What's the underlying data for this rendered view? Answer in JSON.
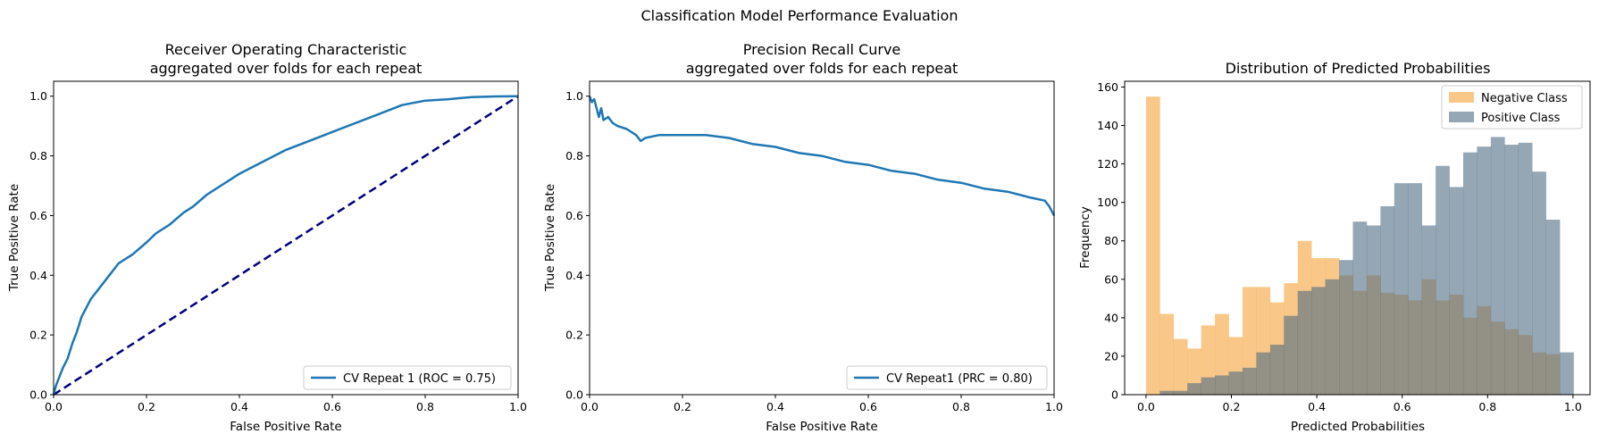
{
  "figure": {
    "suptitle": "Classification Model Performance Evaluation"
  },
  "colors": {
    "roc": "#1f77b4",
    "diagonal": "#000080",
    "negative": "#f5a33a",
    "positive": "#4e6a82"
  },
  "chart_data": [
    {
      "id": "roc",
      "type": "line",
      "title_line1": "Receiver Operating Characteristic",
      "title_line2": "aggregated over folds for each repeat",
      "xlabel": "False Positive Rate",
      "ylabel": "True Positive Rate",
      "xlim": [
        0,
        1
      ],
      "ylim": [
        0,
        1.05
      ],
      "xticks": [
        "0.0",
        "0.2",
        "0.4",
        "0.6",
        "0.8",
        "1.0"
      ],
      "yticks": [
        "0.0",
        "0.2",
        "0.4",
        "0.6",
        "0.8",
        "1.0"
      ],
      "legend_position": "lower-right",
      "grid": false,
      "series": [
        {
          "name": "CV Repeat 1 (ROC = 0.75)",
          "x": [
            0,
            0.005,
            0.01,
            0.02,
            0.03,
            0.04,
            0.05,
            0.06,
            0.07,
            0.08,
            0.1,
            0.12,
            0.14,
            0.15,
            0.17,
            0.2,
            0.22,
            0.25,
            0.28,
            0.3,
            0.33,
            0.35,
            0.4,
            0.45,
            0.5,
            0.55,
            0.6,
            0.65,
            0.7,
            0.75,
            0.8,
            0.85,
            0.9,
            0.95,
            1.0
          ],
          "y": [
            0,
            0.03,
            0.05,
            0.09,
            0.12,
            0.17,
            0.21,
            0.26,
            0.29,
            0.32,
            0.36,
            0.4,
            0.44,
            0.45,
            0.47,
            0.51,
            0.54,
            0.57,
            0.61,
            0.63,
            0.67,
            0.69,
            0.74,
            0.78,
            0.82,
            0.85,
            0.88,
            0.91,
            0.94,
            0.97,
            0.985,
            0.99,
            0.997,
            0.999,
            1.0
          ]
        },
        {
          "x": [
            0,
            1
          ],
          "y": [
            0,
            1
          ]
        }
      ]
    },
    {
      "id": "prc",
      "type": "line",
      "title_line1": "Precision Recall Curve",
      "title_line2": "aggregated over folds for each repeat",
      "xlabel": "False Positive Rate",
      "ylabel": "True Positive Rate",
      "xlim": [
        0,
        1
      ],
      "ylim": [
        0,
        1.05
      ],
      "xticks": [
        "0.0",
        "0.2",
        "0.4",
        "0.6",
        "0.8",
        "1.0"
      ],
      "yticks": [
        "0.0",
        "0.2",
        "0.4",
        "0.6",
        "0.8",
        "1.0"
      ],
      "legend_position": "lower-right",
      "grid": false,
      "series": [
        {
          "name": "CV Repeat1 (PRC = 0.80)",
          "x": [
            0,
            0.005,
            0.01,
            0.015,
            0.02,
            0.025,
            0.03,
            0.04,
            0.05,
            0.06,
            0.08,
            0.1,
            0.11,
            0.12,
            0.15,
            0.2,
            0.25,
            0.3,
            0.35,
            0.4,
            0.45,
            0.5,
            0.55,
            0.6,
            0.65,
            0.7,
            0.75,
            0.8,
            0.85,
            0.9,
            0.95,
            0.98,
            0.99,
            1.0
          ],
          "y": [
            1.0,
            0.98,
            0.99,
            0.96,
            0.93,
            0.96,
            0.92,
            0.93,
            0.91,
            0.9,
            0.89,
            0.87,
            0.85,
            0.86,
            0.87,
            0.87,
            0.87,
            0.86,
            0.84,
            0.83,
            0.81,
            0.8,
            0.78,
            0.77,
            0.75,
            0.74,
            0.72,
            0.71,
            0.69,
            0.68,
            0.66,
            0.65,
            0.63,
            0.6
          ]
        }
      ]
    },
    {
      "id": "hist",
      "type": "bar",
      "title": "Distribution of Predicted Probabilities",
      "xlabel": "Predicted Probabilities",
      "ylabel": "Frequency",
      "xlim": [
        -0.05,
        1.04
      ],
      "ylim": [
        0,
        163
      ],
      "xticks": [
        {
          "value": 0.0,
          "label": "0.0"
        },
        {
          "value": 0.2,
          "label": "0.2"
        },
        {
          "value": 0.4,
          "label": "0.4"
        },
        {
          "value": 0.6,
          "label": "0.6"
        },
        {
          "value": 0.8,
          "label": "0.8"
        },
        {
          "value": 1.0,
          "label": "1.0"
        }
      ],
      "yticks": [
        {
          "value": 0,
          "label": "0"
        },
        {
          "value": 20,
          "label": "20"
        },
        {
          "value": 40,
          "label": "40"
        },
        {
          "value": 60,
          "label": "60"
        },
        {
          "value": 80,
          "label": "80"
        },
        {
          "value": 100,
          "label": "100"
        },
        {
          "value": 120,
          "label": "120"
        },
        {
          "value": 140,
          "label": "140"
        },
        {
          "value": 160,
          "label": "160"
        }
      ],
      "legend_position": "top-right",
      "alpha": 0.6,
      "series": [
        {
          "name": "Negative Class",
          "color_key": "negative",
          "bin_start": 0.0,
          "bin_width": 0.0323,
          "values": [
            155,
            42,
            29,
            24,
            36,
            42,
            30,
            56,
            56,
            48,
            58,
            80,
            71,
            71,
            62,
            54,
            62,
            53,
            52,
            49,
            60,
            49,
            52,
            40,
            46,
            38,
            34,
            31,
            22,
            21,
            0
          ]
        },
        {
          "name": "Positive Class",
          "color_key": "positive",
          "bin_start": 0.0,
          "bin_width": 0.0323,
          "values": [
            0,
            2,
            2,
            6,
            9,
            10,
            12,
            14,
            22,
            26,
            41,
            54,
            56,
            60,
            70,
            90,
            88,
            98,
            110,
            110,
            88,
            119,
            108,
            126,
            129,
            134,
            130,
            131,
            116,
            91,
            22
          ]
        }
      ]
    }
  ]
}
